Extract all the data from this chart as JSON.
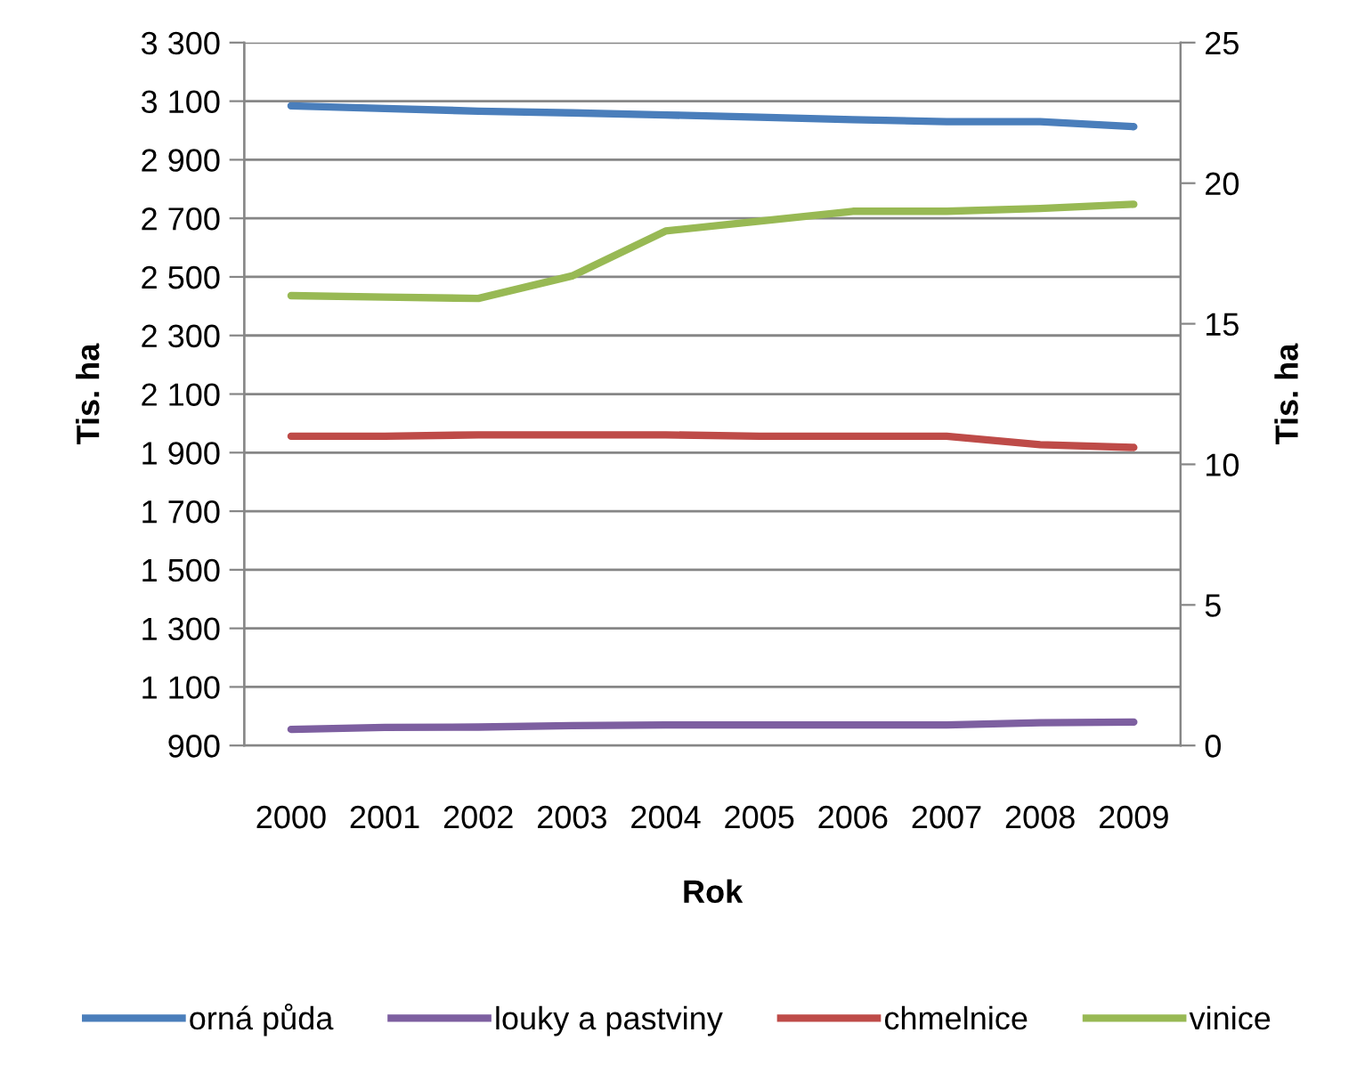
{
  "chart_data": {
    "type": "line",
    "xlabel": "Rok",
    "ylabel": "Tis. ha",
    "y2label": "Tis. ha",
    "categories": [
      "2000",
      "2001",
      "2002",
      "2003",
      "2004",
      "2005",
      "2006",
      "2007",
      "2008",
      "2009"
    ],
    "series": [
      {
        "name": "orná půda",
        "color": "#4a7ebb",
        "values": [
          3084,
          3075,
          3066,
          3060,
          3053,
          3045,
          3037,
          3030,
          3030,
          3013
        ]
      },
      {
        "name": "louky a pastviny",
        "color": "#7d5fa0",
        "values": [
          955,
          962,
          963,
          968,
          970,
          970,
          970,
          970,
          978,
          980
        ]
      },
      {
        "name": "chmelnice",
        "color": "#be4b48",
        "axis": "y2",
        "values": [
          11.0,
          11.0,
          11.05,
          11.05,
          11.05,
          11.0,
          11.0,
          11.0,
          10.7,
          10.6
        ]
      },
      {
        "name": "vinice",
        "color": "#98b954",
        "axis": "y2",
        "values": [
          16.0,
          15.95,
          15.9,
          16.7,
          18.3,
          18.65,
          19.0,
          19.0,
          19.1,
          19.25
        ]
      }
    ],
    "ylim": [
      900,
      3300
    ],
    "yticks": [
      {
        "value": 900,
        "label": "900"
      },
      {
        "value": 1100,
        "label": "1 100"
      },
      {
        "value": 1300,
        "label": "1 300"
      },
      {
        "value": 1500,
        "label": "1 500"
      },
      {
        "value": 1700,
        "label": "1 700"
      },
      {
        "value": 1900,
        "label": "1 900"
      },
      {
        "value": 2100,
        "label": "2 100"
      },
      {
        "value": 2300,
        "label": "2 300"
      },
      {
        "value": 2500,
        "label": "2 500"
      },
      {
        "value": 2700,
        "label": "2 700"
      },
      {
        "value": 2900,
        "label": "2 900"
      },
      {
        "value": 3100,
        "label": "3 100"
      },
      {
        "value": 3300,
        "label": "3 300"
      }
    ],
    "y2lim": [
      0,
      25
    ],
    "y2ticks": [
      0,
      5,
      10,
      15,
      20,
      25
    ],
    "grid": "y",
    "legend": "bottom",
    "marker": "none",
    "line_style": "solid"
  }
}
